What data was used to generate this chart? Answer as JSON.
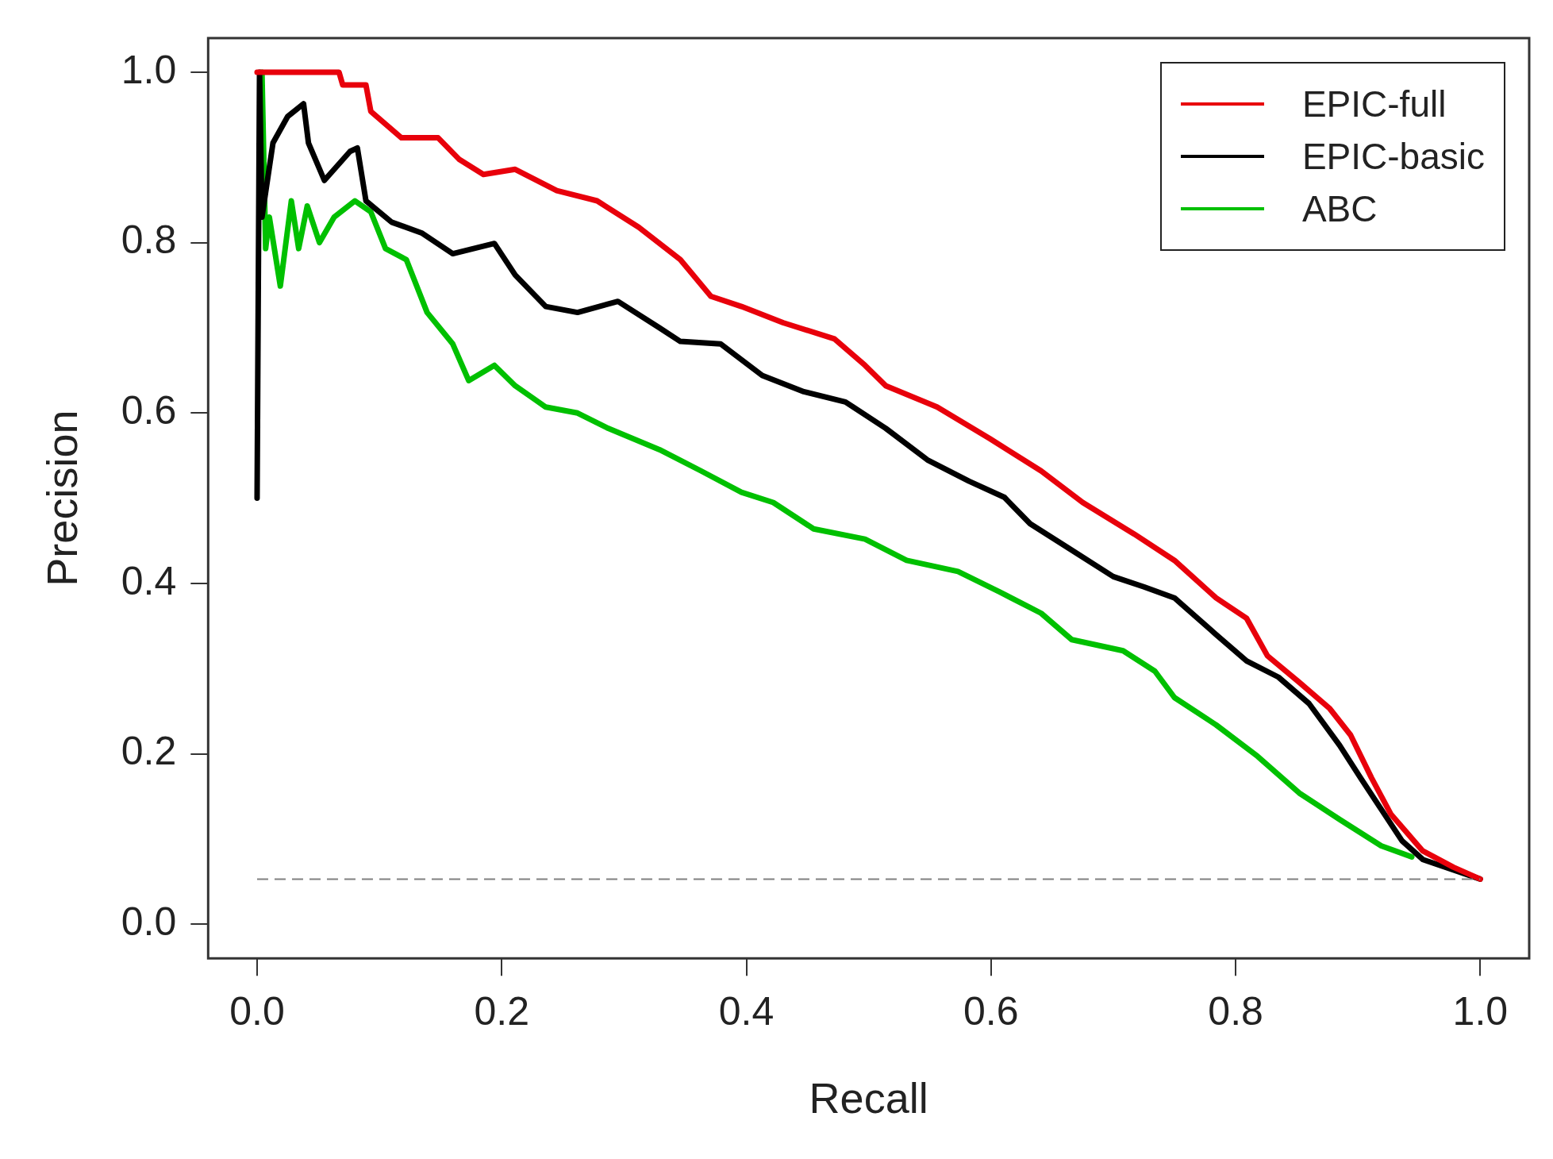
{
  "chart_data": {
    "type": "line",
    "xlabel": "Recall",
    "ylabel": "Precision",
    "xlim": [
      -0.04,
      1.04
    ],
    "ylim": [
      -0.04,
      1.04
    ],
    "xticks": [
      {
        "value": 0,
        "label": "0.0"
      },
      0.2,
      0.4,
      0.6,
      0.8,
      {
        "value": 1,
        "label": "1.0"
      }
    ],
    "yticks": [
      {
        "value": 0,
        "label": "0.0"
      },
      0.2,
      0.4,
      0.6,
      0.8,
      {
        "value": 1,
        "label": "1.0"
      }
    ],
    "grid": false,
    "legend": "top right",
    "marker": "none",
    "line_style": "solid",
    "ref_lines": [
      {
        "axis": "y",
        "value": 0.053,
        "color": "#808080",
        "line_style": "dashed"
      }
    ],
    "series": [
      {
        "name": "EPIC-full",
        "color": "#e8000b",
        "x": [
          0,
          0.067,
          0.07,
          0.089,
          0.093,
          0.118,
          0.148,
          0.165,
          0.185,
          0.211,
          0.245,
          0.278,
          0.312,
          0.346,
          0.371,
          0.396,
          0.43,
          0.472,
          0.497,
          0.514,
          0.556,
          0.599,
          0.641,
          0.675,
          0.717,
          0.75,
          0.784,
          0.809,
          0.826,
          0.852,
          0.877,
          0.894,
          0.911,
          0.927,
          0.953,
          0.978,
          1.0
        ],
        "values": [
          1.0,
          1.0,
          0.985,
          0.985,
          0.954,
          0.923,
          0.923,
          0.898,
          0.88,
          0.886,
          0.861,
          0.849,
          0.818,
          0.78,
          0.737,
          0.725,
          0.706,
          0.687,
          0.656,
          0.632,
          0.607,
          0.57,
          0.532,
          0.495,
          0.458,
          0.427,
          0.383,
          0.359,
          0.315,
          0.284,
          0.253,
          0.222,
          0.172,
          0.129,
          0.086,
          0.067,
          0.053
        ]
      },
      {
        "name": "EPIC-basic",
        "color": "#000000",
        "x": [
          0,
          0.002,
          0.004,
          0.013,
          0.025,
          0.038,
          0.042,
          0.055,
          0.076,
          0.082,
          0.089,
          0.11,
          0.135,
          0.16,
          0.194,
          0.211,
          0.236,
          0.262,
          0.295,
          0.329,
          0.346,
          0.379,
          0.413,
          0.447,
          0.481,
          0.514,
          0.548,
          0.582,
          0.611,
          0.632,
          0.666,
          0.7,
          0.725,
          0.75,
          0.784,
          0.809,
          0.835,
          0.86,
          0.885,
          0.902,
          0.919,
          0.936,
          0.953,
          1.0
        ],
        "values": [
          0.5,
          1.0,
          0.83,
          0.917,
          0.948,
          0.963,
          0.917,
          0.873,
          0.907,
          0.911,
          0.849,
          0.824,
          0.811,
          0.787,
          0.799,
          0.762,
          0.725,
          0.718,
          0.731,
          0.7,
          0.684,
          0.681,
          0.644,
          0.625,
          0.613,
          0.582,
          0.545,
          0.52,
          0.501,
          0.47,
          0.439,
          0.408,
          0.396,
          0.383,
          0.34,
          0.309,
          0.29,
          0.259,
          0.21,
          0.172,
          0.135,
          0.098,
          0.076,
          0.053
        ]
      },
      {
        "name": "ABC",
        "color": "#00c000",
        "x": [
          0.004,
          0.007,
          0.01,
          0.019,
          0.028,
          0.034,
          0.041,
          0.051,
          0.063,
          0.08,
          0.093,
          0.105,
          0.122,
          0.139,
          0.16,
          0.173,
          0.194,
          0.211,
          0.236,
          0.262,
          0.287,
          0.329,
          0.363,
          0.396,
          0.422,
          0.455,
          0.497,
          0.531,
          0.573,
          0.607,
          0.641,
          0.666,
          0.708,
          0.734,
          0.75,
          0.784,
          0.818,
          0.852,
          0.885,
          0.919,
          0.944
        ],
        "values": [
          1.0,
          0.793,
          0.83,
          0.749,
          0.849,
          0.793,
          0.843,
          0.8,
          0.83,
          0.849,
          0.836,
          0.793,
          0.78,
          0.718,
          0.681,
          0.638,
          0.656,
          0.632,
          0.607,
          0.6,
          0.582,
          0.557,
          0.532,
          0.507,
          0.495,
          0.464,
          0.452,
          0.427,
          0.414,
          0.39,
          0.365,
          0.334,
          0.321,
          0.297,
          0.266,
          0.234,
          0.197,
          0.154,
          0.123,
          0.092,
          0.079
        ]
      }
    ]
  }
}
